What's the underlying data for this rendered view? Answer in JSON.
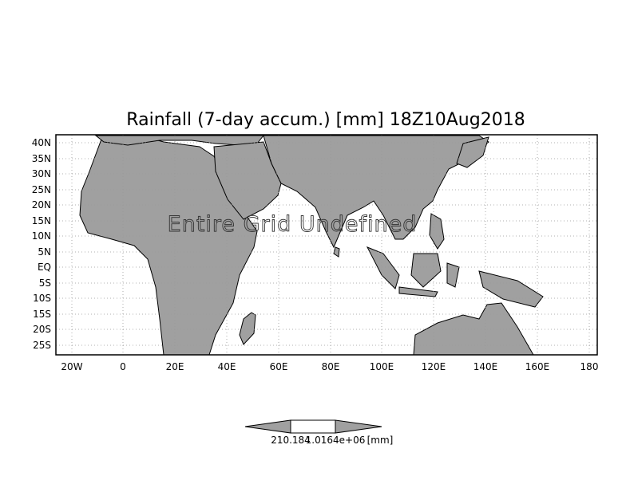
{
  "map": {
    "title": "Rainfall (7-day accum.) [mm] 18Z10Aug2018",
    "overlay_text": "Entire Grid Undefined",
    "lat_labels": [
      "40N",
      "35N",
      "30N",
      "25N",
      "20N",
      "15N",
      "10N",
      "5N",
      "EQ",
      "5S",
      "10S",
      "15S",
      "20S",
      "25S"
    ],
    "lon_labels": [
      "20W",
      "0",
      "20E",
      "40E",
      "60E",
      "80E",
      "100E",
      "120E",
      "140E",
      "160E",
      "180"
    ],
    "land_color": "#a0a0a0",
    "ocean_color": "#ffffff",
    "grid_style": "dotted"
  },
  "colorbar": {
    "label_left": "210.184",
    "label_mid": "1.0164e+06",
    "label_unit": "[mm]",
    "fill_color": "#a0a0a0"
  }
}
